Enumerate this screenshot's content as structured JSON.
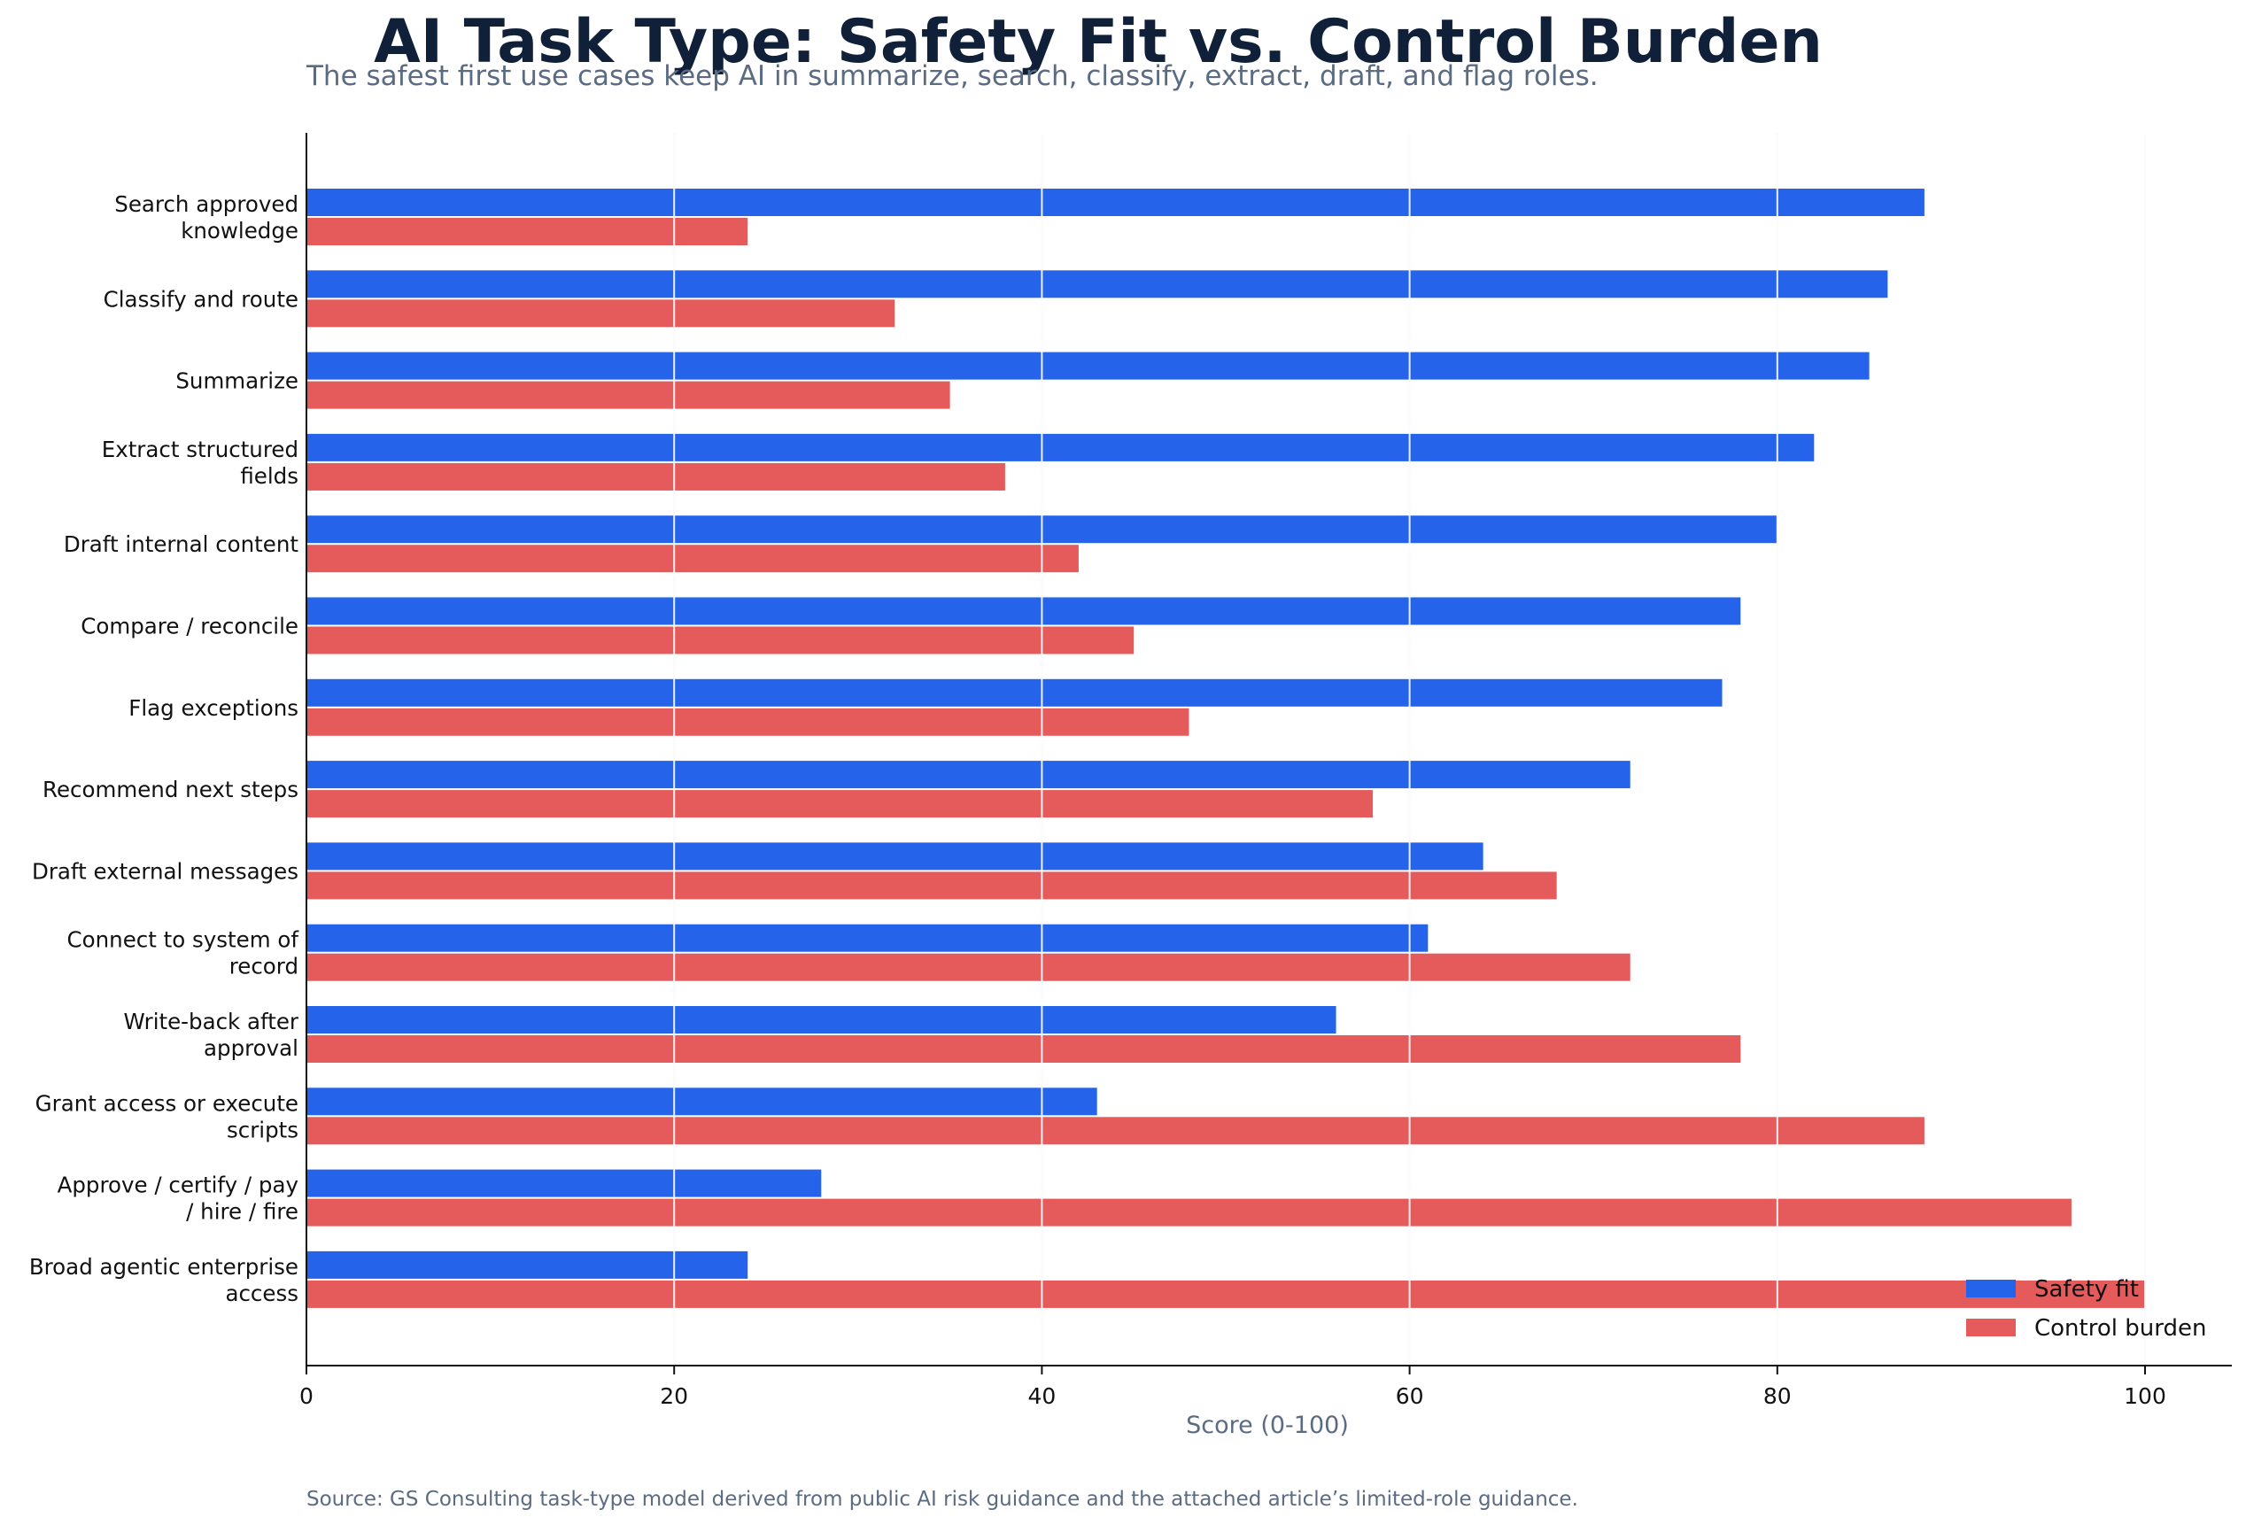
{
  "chart_data": {
    "type": "bar",
    "orientation": "horizontal",
    "title": "AI Task Type: Safety Fit vs. Control Burden",
    "subtitle": "The safest first use cases keep AI in summarize, search, classify, extract, draft, and flag roles.",
    "xlabel": "Score (0-100)",
    "ylabel": "",
    "xlim": [
      0,
      105
    ],
    "xticks": [
      0,
      20,
      40,
      60,
      80,
      100
    ],
    "grid": "vertical",
    "legend_position": "bottom-right",
    "categories": [
      [
        "Search approved",
        "knowledge"
      ],
      [
        "Classify and route"
      ],
      [
        "Summarize"
      ],
      [
        "Extract structured",
        "fields"
      ],
      [
        "Draft internal content"
      ],
      [
        "Compare / reconcile"
      ],
      [
        "Flag exceptions"
      ],
      [
        "Recommend next steps"
      ],
      [
        "Draft external messages"
      ],
      [
        "Connect to system of",
        "record"
      ],
      [
        "Write-back after",
        "approval"
      ],
      [
        "Grant access or execute",
        "scripts"
      ],
      [
        "Approve / certify / pay",
        "/ hire / fire"
      ],
      [
        "Broad agentic enterprise",
        "access"
      ]
    ],
    "series": [
      {
        "name": "Safety fit",
        "color": "#2563eb",
        "values": [
          88,
          86,
          85,
          82,
          80,
          78,
          77,
          72,
          64,
          61,
          56,
          43,
          28,
          24
        ]
      },
      {
        "name": "Control burden",
        "color": "#e55b5b",
        "values": [
          24,
          32,
          35,
          38,
          42,
          45,
          48,
          58,
          68,
          72,
          78,
          88,
          96,
          100
        ]
      }
    ],
    "source": "Source: GS Consulting task-type model derived from public AI risk guidance and the attached article’s limited-role guidance."
  }
}
